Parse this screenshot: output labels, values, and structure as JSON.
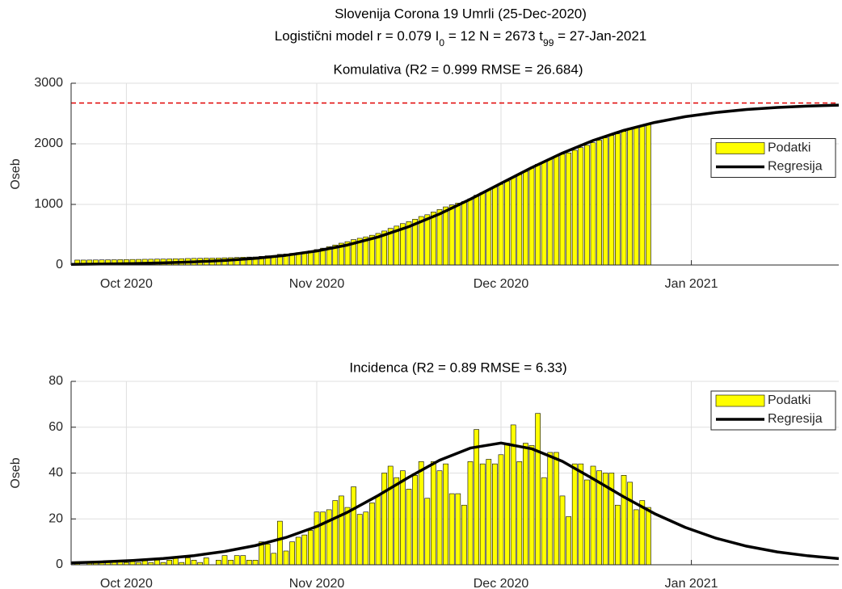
{
  "title": "Slovenija Corona 19 Umrli (25-Dec-2020)",
  "subtitle": [
    "Logistični model r = 0.079  I",
    "0",
    " = 12  N = 2673  t",
    "99",
    " = 27-Jan-2021"
  ],
  "chart_data": [
    {
      "type": "bar",
      "title": "Komulativa (R2 = 0.999  RMSE = 26.684)",
      "ylabel": "Oseb",
      "xlim": [
        266,
        391
      ],
      "xticks": [
        {
          "value": 275,
          "label": "Oct 2020"
        },
        {
          "value": 306,
          "label": "Nov 2020"
        },
        {
          "value": 336,
          "label": "Dec 2020"
        },
        {
          "value": 367,
          "label": "Jan 2021"
        }
      ],
      "ylim": [
        0,
        3000
      ],
      "yticks": [
        0,
        1000,
        2000,
        3000
      ],
      "grid": true,
      "legend": "east",
      "hline": {
        "value": 2673,
        "color": "#e00000"
      },
      "series": [
        {
          "name": "Podatki",
          "kind": "bar",
          "color": "#ffff00",
          "x": [
            267,
            268,
            269,
            270,
            271,
            272,
            273,
            274,
            275,
            276,
            277,
            278,
            279,
            280,
            281,
            282,
            283,
            284,
            285,
            286,
            287,
            288,
            289,
            290,
            291,
            292,
            293,
            294,
            295,
            296,
            297,
            298,
            299,
            300,
            301,
            302,
            303,
            304,
            305,
            306,
            307,
            308,
            309,
            310,
            311,
            312,
            313,
            314,
            315,
            316,
            317,
            318,
            319,
            320,
            321,
            322,
            323,
            324,
            325,
            326,
            327,
            328,
            329,
            330,
            331,
            332,
            333,
            334,
            335,
            336,
            337,
            338,
            339,
            340,
            341,
            342,
            343,
            344,
            345,
            346,
            347,
            348,
            349,
            350,
            351,
            352,
            353,
            354,
            355,
            356,
            357,
            358,
            359,
            360
          ],
          "values": [
            81,
            81,
            82,
            83,
            84,
            85,
            86,
            88,
            89,
            91,
            92,
            94,
            95,
            97,
            98,
            100,
            103,
            104,
            107,
            109,
            110,
            113,
            113,
            115,
            119,
            121,
            125,
            129,
            131,
            133,
            143,
            152,
            157,
            176,
            182,
            192,
            204,
            217,
            232,
            255,
            278,
            302,
            330,
            360,
            385,
            419,
            441,
            464,
            491,
            521,
            561,
            604,
            642,
            683,
            716,
            755,
            800,
            829,
            874,
            915,
            959,
            990,
            1021,
            1047,
            1092,
            1151,
            1195,
            1241,
            1285,
            1333,
            1386,
            1447,
            1492,
            1545,
            1597,
            1663,
            1701,
            1750,
            1799,
            1829,
            1850,
            1894,
            1938,
            1975,
            2018,
            2059,
            2099,
            2139,
            2165,
            2204,
            2240,
            2264,
            2292,
            2317
          ]
        },
        {
          "name": "Regresija",
          "kind": "line",
          "color": "#000000",
          "x": [
            266,
            271,
            276,
            281,
            286,
            291,
            296,
            301,
            306,
            311,
            316,
            321,
            326,
            331,
            336,
            341,
            346,
            351,
            356,
            361,
            366,
            371,
            376,
            381,
            386,
            391
          ],
          "values": [
            10.7,
            15.9,
            23.5,
            34.8,
            51.3,
            75.5,
            110.5,
            160.7,
            231.8,
            330.4,
            462.5,
            633.5,
            842.6,
            1086,
            1347,
            1607,
            1847,
            2055,
            2223,
            2352,
            2448,
            2517,
            2566,
            2600,
            2623,
            2639
          ]
        }
      ]
    },
    {
      "type": "bar",
      "title": "Incidenca (R2 = 0.89  RMSE = 6.33)",
      "ylabel": "Oseb",
      "xlim": [
        266,
        391
      ],
      "xticks": [
        {
          "value": 275,
          "label": "Oct 2020"
        },
        {
          "value": 306,
          "label": "Nov 2020"
        },
        {
          "value": 336,
          "label": "Dec 2020"
        },
        {
          "value": 367,
          "label": "Jan 2021"
        }
      ],
      "ylim": [
        0,
        80
      ],
      "yticks": [
        0,
        20,
        40,
        60,
        80
      ],
      "grid": true,
      "legend": "northeast",
      "series": [
        {
          "name": "Podatki",
          "kind": "bar",
          "color": "#ffff00",
          "x": [
            267,
            268,
            269,
            270,
            271,
            272,
            273,
            274,
            275,
            276,
            277,
            278,
            279,
            280,
            281,
            282,
            283,
            284,
            285,
            286,
            287,
            288,
            289,
            290,
            291,
            292,
            293,
            294,
            295,
            296,
            297,
            298,
            299,
            300,
            301,
            302,
            303,
            304,
            305,
            306,
            307,
            308,
            309,
            310,
            311,
            312,
            313,
            314,
            315,
            316,
            317,
            318,
            319,
            320,
            321,
            322,
            323,
            324,
            325,
            326,
            327,
            328,
            329,
            330,
            331,
            332,
            333,
            334,
            335,
            336,
            337,
            338,
            339,
            340,
            341,
            342,
            343,
            344,
            345,
            346,
            347,
            348,
            349,
            350,
            351,
            352,
            353,
            354,
            355,
            356,
            357,
            358,
            359,
            360
          ],
          "values": [
            1,
            0,
            1,
            1,
            1,
            1,
            1,
            2,
            1,
            2,
            1,
            2,
            1,
            2,
            1,
            2,
            3,
            1,
            3,
            2,
            1,
            3,
            0,
            2,
            4,
            2,
            4,
            4,
            2,
            2,
            10,
            9,
            5,
            19,
            6,
            10,
            12,
            13,
            15,
            23,
            23,
            24,
            28,
            30,
            25,
            34,
            22,
            23,
            27,
            30,
            40,
            43,
            38,
            41,
            33,
            39,
            45,
            29,
            45,
            41,
            44,
            31,
            31,
            26,
            45,
            59,
            44,
            46,
            44,
            48,
            53,
            61,
            45,
            53,
            52,
            66,
            38,
            49,
            49,
            30,
            21,
            44,
            44,
            37,
            43,
            41,
            40,
            40,
            26,
            39,
            36,
            24,
            28,
            25
          ]
        },
        {
          "name": "Regresija",
          "kind": "line",
          "color": "#000000",
          "x": [
            266,
            271,
            276,
            281,
            286,
            291,
            296,
            301,
            306,
            311,
            316,
            321,
            326,
            331,
            336,
            341,
            346,
            351,
            356,
            361,
            366,
            371,
            376,
            381,
            386,
            391
          ],
          "values": [
            0.84,
            1.25,
            1.85,
            2.72,
            3.98,
            5.81,
            8.37,
            11.9,
            16.7,
            22.9,
            30.2,
            38.2,
            45.6,
            50.9,
            53.1,
            50.6,
            45.1,
            37.5,
            29.6,
            22.3,
            16.3,
            11.6,
            8.1,
            5.6,
            3.9,
            2.7
          ]
        }
      ]
    }
  ]
}
